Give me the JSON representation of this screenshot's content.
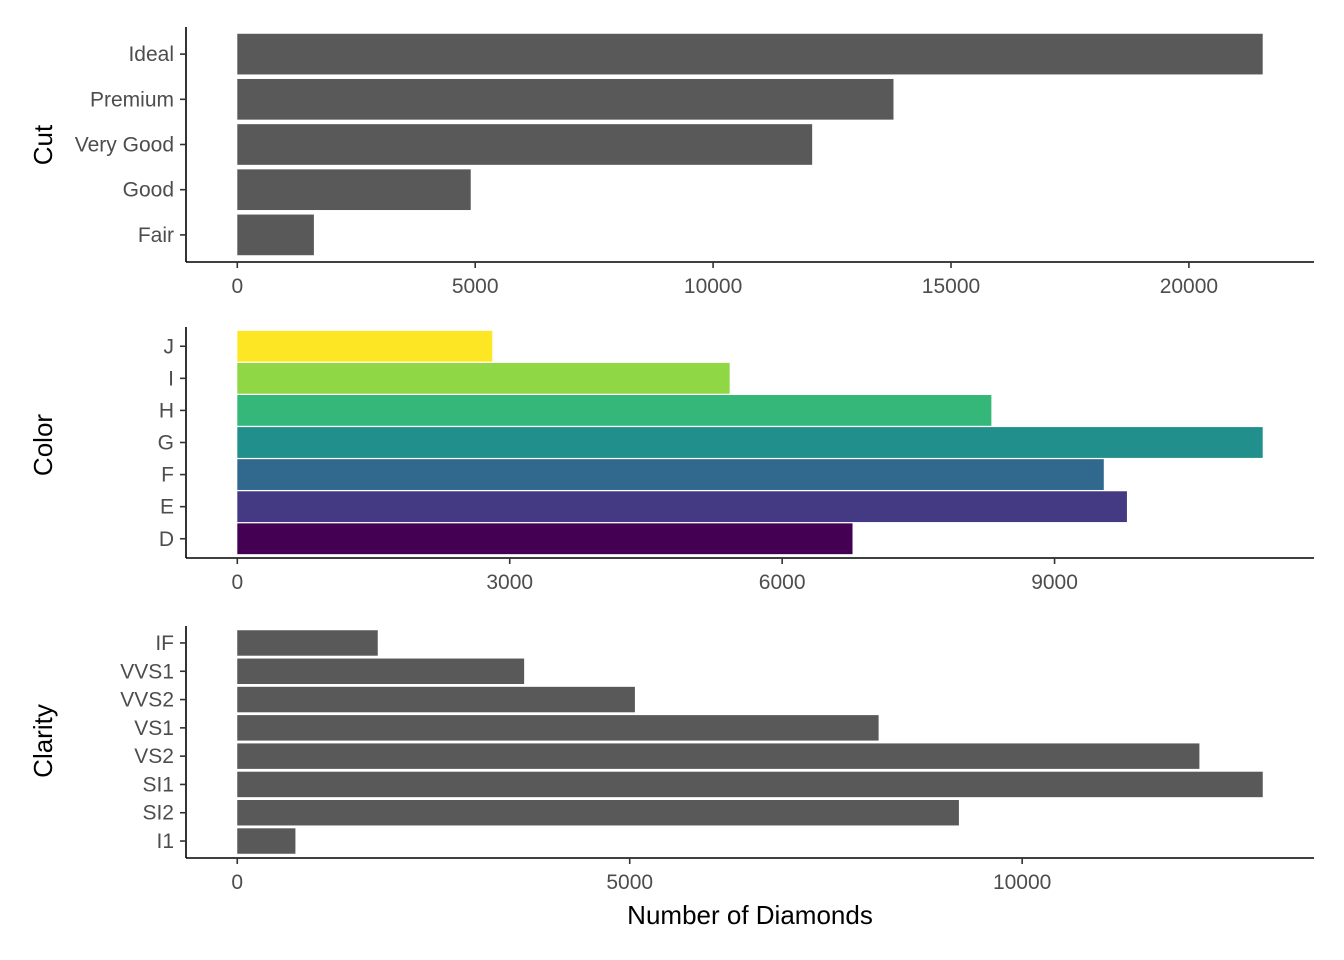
{
  "chart_data": [
    {
      "type": "bar",
      "orientation": "horizontal",
      "ylabel": "Cut",
      "xlabel": "",
      "categories": [
        "Fair",
        "Good",
        "Very Good",
        "Premium",
        "Ideal"
      ],
      "values": [
        1610,
        4906,
        12082,
        13791,
        21551
      ],
      "xticks": [
        0,
        5000,
        10000,
        15000,
        20000
      ],
      "xtick_labels": [
        "0",
        "5000",
        "10000",
        "15000",
        "20000"
      ],
      "xlim": [
        -1078,
        22629
      ],
      "bar_colors": [
        "#595959",
        "#595959",
        "#595959",
        "#595959",
        "#595959"
      ]
    },
    {
      "type": "bar",
      "orientation": "horizontal",
      "ylabel": "Color",
      "xlabel": "",
      "categories": [
        "D",
        "E",
        "F",
        "G",
        "H",
        "I",
        "J"
      ],
      "values": [
        6775,
        9797,
        9542,
        11292,
        8304,
        5422,
        2808
      ],
      "xticks": [
        0,
        3000,
        6000,
        9000
      ],
      "xtick_labels": [
        "0",
        "3000",
        "6000",
        "9000"
      ],
      "xlim": [
        -565,
        11857
      ],
      "bar_colors": [
        "#440154",
        "#443A83",
        "#31688E",
        "#21908C",
        "#35B779",
        "#8FD744",
        "#FDE725"
      ]
    },
    {
      "type": "bar",
      "orientation": "horizontal",
      "ylabel": "Clarity",
      "xlabel": "Number of Diamonds",
      "categories": [
        "I1",
        "SI2",
        "SI1",
        "VS2",
        "VS1",
        "VVS2",
        "VVS1",
        "IF"
      ],
      "values": [
        741,
        9194,
        13065,
        12258,
        8171,
        5066,
        3655,
        1790
      ],
      "xticks": [
        0,
        5000,
        10000
      ],
      "xtick_labels": [
        "0",
        "5000",
        "10000"
      ],
      "xlim": [
        -653,
        13718
      ],
      "bar_colors": [
        "#595959",
        "#595959",
        "#595959",
        "#595959",
        "#595959",
        "#595959",
        "#595959",
        "#595959"
      ]
    }
  ]
}
